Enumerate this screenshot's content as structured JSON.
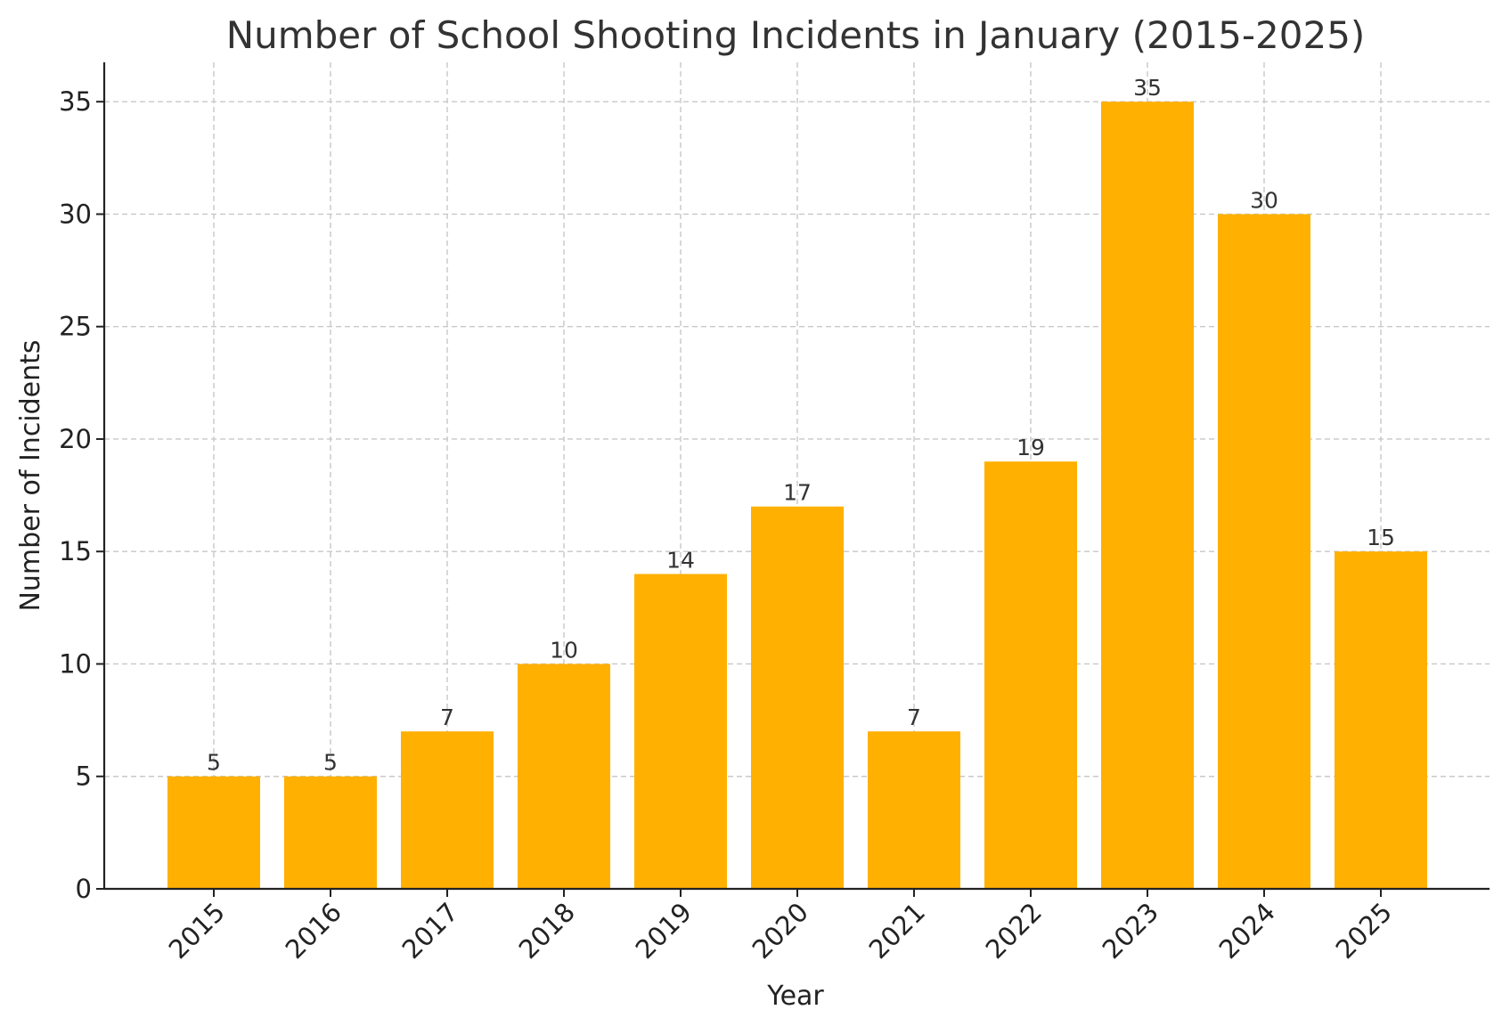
{
  "chart_data": {
    "type": "bar",
    "title": "Number of School Shooting Incidents in January (2015-2025)",
    "xlabel": "Year",
    "ylabel": "Number of Incidents",
    "categories": [
      "2015",
      "2016",
      "2017",
      "2018",
      "2019",
      "2020",
      "2021",
      "2022",
      "2023",
      "2024",
      "2025"
    ],
    "values": [
      5,
      5,
      7,
      10,
      14,
      17,
      7,
      19,
      35,
      30,
      15
    ],
    "ylim": [
      0,
      36.75
    ],
    "yticks": [
      0,
      5,
      10,
      15,
      20,
      25,
      30,
      35
    ],
    "grid": true,
    "bar_color": "#FFB000",
    "data_labels": true
  }
}
